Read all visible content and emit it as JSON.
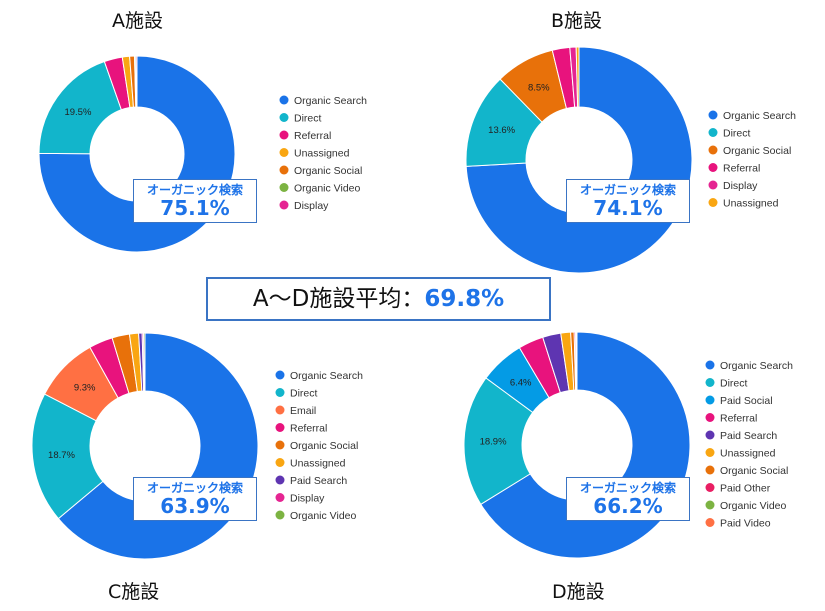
{
  "average": {
    "label": "A～D施設平均：",
    "value": "69.8%"
  },
  "callout_label": "オーガニック検索",
  "colors": {
    "Organic Search": "#1a73e8",
    "Direct": "#12b5cb",
    "Referral": "#e8137d",
    "Unassigned": "#f9a612",
    "Organic Social": "#e8710a",
    "Organic Video": "#7cb342",
    "Display": "#e52592",
    "Email": "#ff7043",
    "Paid Search": "#5e35b1",
    "Paid Social": "#049be5",
    "Paid Other": "#e91e63",
    "Paid Video": "#ff7043"
  },
  "chart_data": [
    {
      "type": "pie",
      "title": "A施設",
      "callout": "75.1%",
      "categories": [
        "Organic Search",
        "Direct",
        "Referral",
        "Unassigned",
        "Organic Social",
        "Organic Video",
        "Display"
      ],
      "values": [
        75.1,
        19.5,
        3.0,
        1.2,
        0.8,
        0.2,
        0.2
      ],
      "slice_labels": [
        "",
        "19.5%",
        "",
        "",
        "",
        "",
        ""
      ]
    },
    {
      "type": "pie",
      "title": "B施設",
      "callout": "74.1%",
      "categories": [
        "Organic Search",
        "Direct",
        "Organic Social",
        "Referral",
        "Display",
        "Unassigned"
      ],
      "values": [
        74.1,
        13.6,
        8.5,
        2.5,
        0.9,
        0.4
      ],
      "slice_labels": [
        "",
        "13.6%",
        "8.5%",
        "",
        "",
        ""
      ]
    },
    {
      "type": "pie",
      "title": "C施設",
      "callout": "63.9%",
      "categories": [
        "Organic Search",
        "Direct",
        "Email",
        "Referral",
        "Organic Social",
        "Unassigned",
        "Paid Search",
        "Display",
        "Organic Video"
      ],
      "values": [
        63.9,
        18.7,
        9.3,
        3.4,
        2.5,
        1.3,
        0.5,
        0.2,
        0.2
      ],
      "slice_labels": [
        "",
        "18.7%",
        "9.3%",
        "",
        "",
        "",
        "",
        "",
        ""
      ]
    },
    {
      "type": "pie",
      "title": "D施設",
      "callout": "66.2%",
      "categories": [
        "Organic Search",
        "Direct",
        "Paid Social",
        "Referral",
        "Paid Search",
        "Unassigned",
        "Organic Social",
        "Paid Other",
        "Organic Video",
        "Paid Video"
      ],
      "values": [
        66.2,
        18.9,
        6.4,
        3.6,
        2.6,
        1.4,
        0.5,
        0.2,
        0.1,
        0.1
      ],
      "slice_labels": [
        "",
        "18.9%",
        "6.4%",
        "",
        "",
        "",
        "",
        "",
        "",
        ""
      ]
    }
  ]
}
